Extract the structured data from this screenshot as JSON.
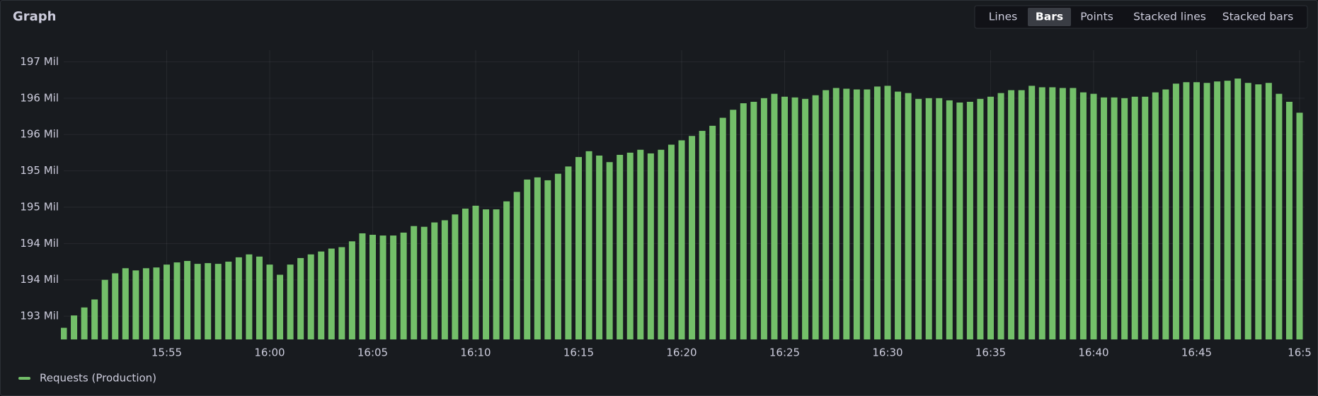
{
  "panel_title": "Graph",
  "view_options": [
    "Lines",
    "Bars",
    "Points",
    "Stacked lines",
    "Stacked bars"
  ],
  "selected_view": 1,
  "chart_data": {
    "type": "bar",
    "categories": [
      null,
      null,
      null,
      null,
      null,
      null,
      null,
      null,
      null,
      null,
      "15:55",
      null,
      null,
      null,
      null,
      null,
      null,
      null,
      null,
      null,
      "16:00",
      null,
      null,
      null,
      null,
      null,
      null,
      null,
      null,
      null,
      "16:05",
      null,
      null,
      null,
      null,
      null,
      null,
      null,
      null,
      null,
      "16:10",
      null,
      null,
      null,
      null,
      null,
      null,
      null,
      null,
      null,
      "16:15",
      null,
      null,
      null,
      null,
      null,
      null,
      null,
      null,
      null,
      "16:20",
      null,
      null,
      null,
      null,
      null,
      null,
      null,
      null,
      null,
      "16:25",
      null,
      null,
      null,
      null,
      null,
      null,
      null,
      null,
      null,
      "16:30",
      null,
      null,
      null,
      null,
      null,
      null,
      null,
      null,
      null,
      "16:35",
      null,
      null,
      null,
      null,
      null,
      null,
      null,
      null,
      null,
      "16:40",
      null,
      null,
      null,
      null,
      null,
      null,
      null,
      null,
      null,
      "16:45",
      null,
      null,
      null,
      null,
      null,
      null,
      null,
      null,
      null,
      "16:5"
    ],
    "series": [
      {
        "name": "Requests (Production)",
        "color": "#73bf69",
        "values": [
          192.84,
          193.01,
          193.12,
          193.23,
          193.5,
          193.59,
          193.66,
          193.63,
          193.66,
          193.67,
          193.71,
          193.74,
          193.76,
          193.72,
          193.73,
          193.72,
          193.75,
          193.81,
          193.85,
          193.82,
          193.71,
          193.57,
          193.71,
          193.8,
          193.85,
          193.89,
          193.93,
          193.95,
          194.03,
          194.14,
          194.12,
          194.11,
          194.11,
          194.15,
          194.24,
          194.23,
          194.29,
          194.32,
          194.4,
          194.48,
          194.52,
          194.47,
          194.47,
          194.58,
          194.71,
          194.88,
          194.91,
          194.87,
          194.96,
          195.06,
          195.19,
          195.27,
          195.21,
          195.12,
          195.22,
          195.25,
          195.29,
          195.24,
          195.29,
          195.36,
          195.42,
          195.48,
          195.55,
          195.62,
          195.73,
          195.84,
          195.93,
          195.95,
          196.0,
          196.06,
          196.02,
          196.01,
          195.99,
          196.04,
          196.11,
          196.14,
          196.13,
          196.12,
          196.12,
          196.16,
          196.17,
          196.09,
          196.07,
          195.99,
          196.0,
          196.0,
          195.97,
          195.94,
          195.95,
          195.99,
          196.02,
          196.07,
          196.11,
          196.11,
          196.17,
          196.15,
          196.15,
          196.14,
          196.14,
          196.08,
          196.06,
          196.01,
          196.01,
          196.0,
          196.02,
          196.02,
          196.08,
          196.12,
          196.2,
          196.22,
          196.22,
          196.21,
          196.23,
          196.24,
          196.27,
          196.21,
          196.19,
          196.21,
          196.06,
          195.95,
          195.8
        ]
      }
    ],
    "ylim": [
      192.68,
      196.66
    ],
    "yticks": [
      {
        "value": 193,
        "label": "193 Mil"
      },
      {
        "value": 193.5,
        "label": "194 Mil"
      },
      {
        "value": 194,
        "label": "194 Mil"
      },
      {
        "value": 194.5,
        "label": "195 Mil"
      },
      {
        "value": 195,
        "label": "195 Mil"
      },
      {
        "value": 195.5,
        "label": "196 Mil"
      },
      {
        "value": 196,
        "label": "196 Mil"
      },
      {
        "value": 196.5,
        "label": "197 Mil"
      }
    ],
    "grid": true,
    "legend": "bottom-left"
  }
}
